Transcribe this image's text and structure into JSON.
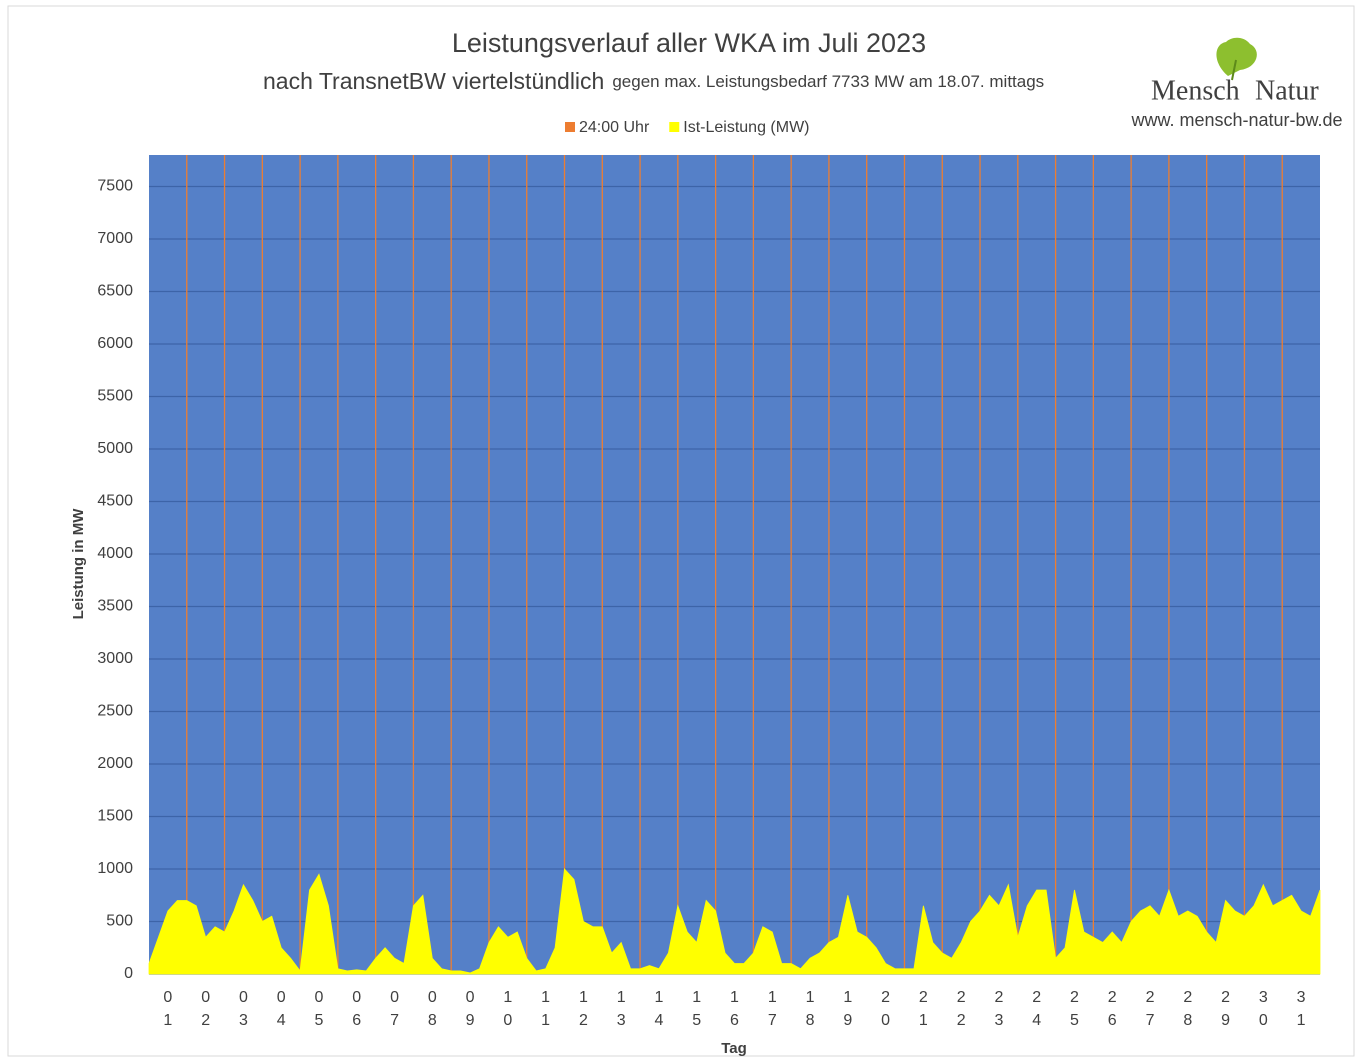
{
  "chart_data": {
    "type": "area",
    "title": "Leistungsverlauf aller WKA im Juli 2023",
    "subtitle": "nach TransnetBW viertelstündlich",
    "subtitle_note": "gegen max. Leistungsbedarf 7733 MW am 18.07. mittags",
    "logo_words": [
      "Mensch",
      "Natur"
    ],
    "website": "www. mensch-natur-bw.de",
    "y_label": "Leistung in MW",
    "x_label": "Tag",
    "background": "#5580c8",
    "grid": true,
    "legend": "top",
    "categories": [
      "01",
      "02",
      "03",
      "04",
      "05",
      "06",
      "07",
      "08",
      "09",
      "10",
      "11",
      "12",
      "13",
      "14",
      "15",
      "16",
      "17",
      "18",
      "19",
      "20",
      "21",
      "22",
      "23",
      "24",
      "25",
      "26",
      "27",
      "28",
      "29",
      "30",
      "31"
    ],
    "xlim": [
      0,
      31
    ],
    "ylim": [
      0,
      7800
    ],
    "yticks": [
      0,
      500,
      1000,
      1500,
      2000,
      2500,
      3000,
      3500,
      4000,
      4500,
      5000,
      5500,
      6000,
      6500,
      7000,
      7500
    ],
    "series": [
      {
        "name": "24:00 Uhr",
        "color": "#ed7d31",
        "type": "bar",
        "x": [
          1,
          2,
          3,
          4,
          5,
          6,
          7,
          8,
          9,
          10,
          11,
          12,
          13,
          14,
          15,
          16,
          17,
          18,
          19,
          20,
          21,
          22,
          23,
          24,
          25,
          26,
          27,
          28,
          29,
          30
        ],
        "values": [
          7800,
          7800,
          7800,
          7800,
          7800,
          7800,
          7800,
          7800,
          7800,
          7800,
          7800,
          7800,
          7800,
          7800,
          7800,
          7800,
          7800,
          7800,
          7800,
          7800,
          7800,
          7800,
          7800,
          7800,
          7800,
          7800,
          7800,
          7800,
          7800,
          7800
        ]
      },
      {
        "name": "Ist-Leistung (MW)",
        "color": "#ffff00",
        "type": "area",
        "x": [
          0,
          0.25,
          0.5,
          0.75,
          1,
          1.25,
          1.5,
          1.75,
          2,
          2.25,
          2.5,
          2.75,
          3,
          3.25,
          3.5,
          3.75,
          4,
          4.25,
          4.5,
          4.75,
          5,
          5.25,
          5.5,
          5.75,
          6,
          6.25,
          6.5,
          6.75,
          7,
          7.25,
          7.5,
          7.75,
          8,
          8.25,
          8.5,
          8.75,
          9,
          9.25,
          9.5,
          9.75,
          10,
          10.25,
          10.5,
          10.75,
          11,
          11.25,
          11.5,
          11.75,
          12,
          12.25,
          12.5,
          12.75,
          13,
          13.25,
          13.5,
          13.75,
          14,
          14.25,
          14.5,
          14.75,
          15,
          15.25,
          15.5,
          15.75,
          16,
          16.25,
          16.5,
          16.75,
          17,
          17.25,
          17.5,
          17.75,
          18,
          18.25,
          18.5,
          18.75,
          19,
          19.25,
          19.5,
          19.75,
          20,
          20.25,
          20.5,
          20.75,
          21,
          21.25,
          21.5,
          21.75,
          22,
          22.25,
          22.5,
          22.75,
          23,
          23.25,
          23.5,
          23.75,
          24,
          24.25,
          24.5,
          24.75,
          25,
          25.25,
          25.5,
          25.75,
          26,
          26.25,
          26.5,
          26.75,
          27,
          27.25,
          27.5,
          27.75,
          28,
          28.25,
          28.5,
          28.75,
          29,
          29.25,
          29.5,
          29.75,
          30,
          30.25,
          30.5,
          30.75,
          31
        ],
        "values": [
          100,
          350,
          600,
          700,
          700,
          650,
          350,
          450,
          400,
          600,
          850,
          700,
          500,
          550,
          250,
          150,
          30,
          800,
          950,
          650,
          50,
          30,
          40,
          30,
          150,
          250,
          150,
          100,
          650,
          750,
          150,
          50,
          30,
          30,
          10,
          50,
          300,
          450,
          350,
          400,
          150,
          30,
          50,
          250,
          1000,
          900,
          500,
          450,
          450,
          200,
          300,
          50,
          50,
          80,
          50,
          200,
          650,
          400,
          300,
          700,
          600,
          200,
          100,
          100,
          200,
          450,
          400,
          100,
          100,
          50,
          150,
          200,
          300,
          350,
          750,
          400,
          350,
          250,
          100,
          50,
          50,
          50,
          650,
          300,
          200,
          150,
          300,
          500,
          600,
          750,
          650,
          850,
          350,
          650,
          800,
          800,
          150,
          250,
          800,
          400,
          350,
          300,
          400,
          300,
          500,
          600,
          650,
          550,
          800,
          550,
          600,
          550,
          400,
          300,
          700,
          600,
          550,
          650,
          850,
          650,
          700,
          750,
          600,
          550,
          800
        ]
      }
    ]
  }
}
